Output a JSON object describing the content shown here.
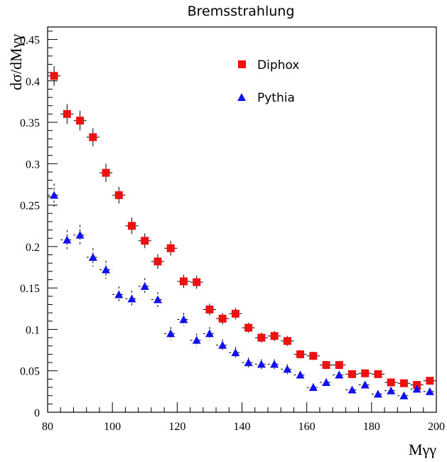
{
  "chart_data": {
    "type": "scatter",
    "title": "Bremsstrahlung",
    "xlabel": "Mγγ",
    "ylabel": "dσ/dMγγ",
    "xlim": [
      80,
      200
    ],
    "ylim": [
      0,
      0.465
    ],
    "x_ticks": [
      "80",
      "100",
      "120",
      "140",
      "160",
      "180",
      "200"
    ],
    "y_ticks": [
      "0",
      "0.05",
      "0.1",
      "0.15",
      "0.2",
      "0.25",
      "0.3",
      "0.35",
      "0.4",
      "0.45"
    ],
    "legend_position": "top-right",
    "grid": false,
    "series": [
      {
        "name": "Diphox",
        "marker": "square",
        "color": "#ee1111",
        "x": [
          82,
          86,
          90,
          94,
          98,
          102,
          106,
          110,
          114,
          118,
          122,
          126,
          130,
          134,
          138,
          142,
          146,
          150,
          154,
          158,
          162,
          166,
          170,
          174,
          178,
          182,
          186,
          190,
          194,
          198
        ],
        "y": [
          0.406,
          0.36,
          0.352,
          0.332,
          0.289,
          0.262,
          0.225,
          0.207,
          0.182,
          0.198,
          0.158,
          0.157,
          0.124,
          0.113,
          0.119,
          0.102,
          0.09,
          0.092,
          0.086,
          0.07,
          0.068,
          0.057,
          0.057,
          0.046,
          0.047,
          0.046,
          0.036,
          0.035,
          0.033,
          0.038
        ],
        "yerr": [
          0.012,
          0.012,
          0.012,
          0.011,
          0.011,
          0.01,
          0.01,
          0.009,
          0.009,
          0.009,
          0.008,
          0.008,
          0.007,
          0.007,
          0.007,
          0.006,
          0.006,
          0.006,
          0.006,
          0.005,
          0.005,
          0.005,
          0.005,
          0.004,
          0.004,
          0.004,
          0.004,
          0.004,
          0.004,
          0.004
        ],
        "xerr": 2
      },
      {
        "name": "Pythia",
        "marker": "triangle",
        "color": "#1111ee",
        "x": [
          82,
          86,
          90,
          94,
          98,
          102,
          106,
          110,
          114,
          118,
          122,
          126,
          130,
          134,
          138,
          142,
          146,
          150,
          154,
          158,
          162,
          166,
          170,
          174,
          178,
          182,
          186,
          190,
          194,
          198
        ],
        "y": [
          0.262,
          0.208,
          0.214,
          0.187,
          0.172,
          0.142,
          0.137,
          0.152,
          0.136,
          0.095,
          0.112,
          0.087,
          0.095,
          0.081,
          0.072,
          0.06,
          0.058,
          0.058,
          0.052,
          0.045,
          0.03,
          0.036,
          0.045,
          0.027,
          0.033,
          0.022,
          0.026,
          0.02,
          0.028,
          0.025
        ],
        "yerr": [
          0.014,
          0.012,
          0.012,
          0.011,
          0.011,
          0.01,
          0.01,
          0.01,
          0.009,
          0.008,
          0.008,
          0.008,
          0.008,
          0.007,
          0.007,
          0.006,
          0.006,
          0.006,
          0.006,
          0.005,
          0.005,
          0.005,
          0.005,
          0.004,
          0.004,
          0.004,
          0.004,
          0.004,
          0.004,
          0.004
        ],
        "xerr": 2
      }
    ]
  }
}
